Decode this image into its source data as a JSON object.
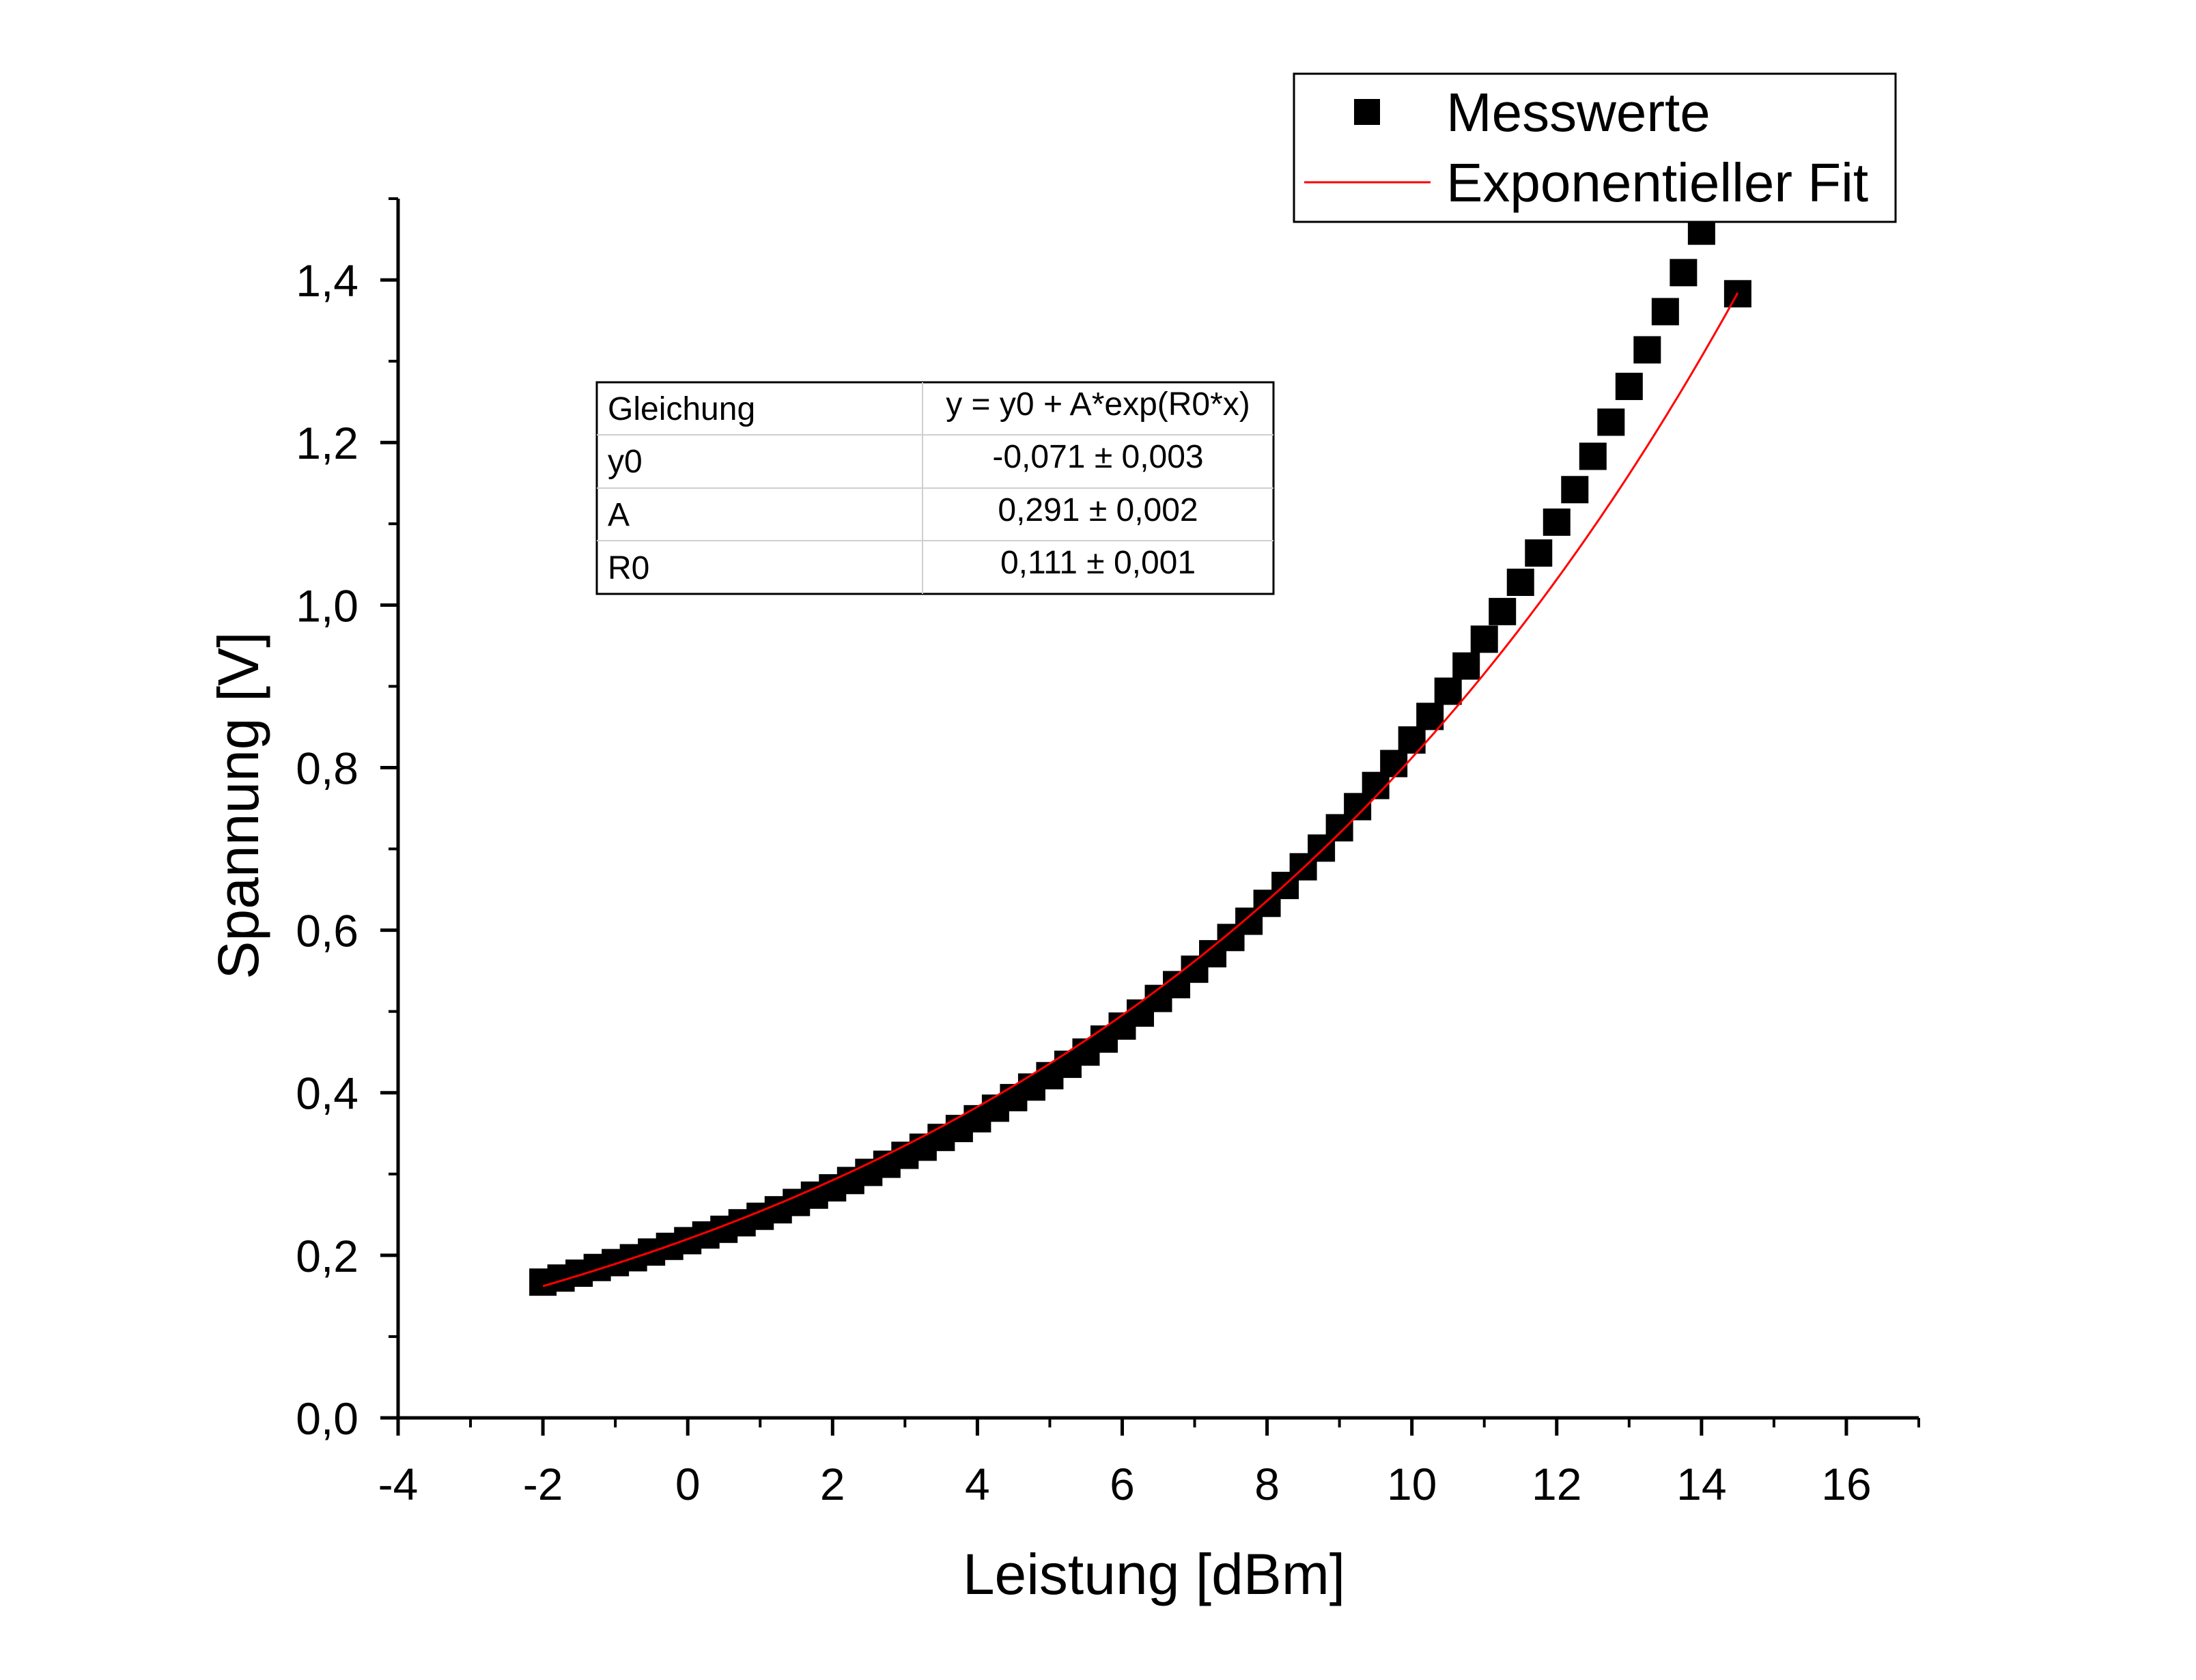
{
  "chart_data": {
    "type": "scatter",
    "xlabel": "Leistung [dBm]",
    "ylabel": "Spannung [V]",
    "xlim": [
      -4,
      17
    ],
    "ylim": [
      0,
      1.5
    ],
    "x_ticks": [
      -4,
      -2,
      0,
      2,
      4,
      6,
      8,
      10,
      12,
      14,
      16
    ],
    "x_tick_labels": [
      "-4",
      "-2",
      "0",
      "2",
      "4",
      "6",
      "8",
      "10",
      "12",
      "14",
      "16"
    ],
    "y_ticks": [
      0,
      0.2,
      0.4,
      0.6,
      0.8,
      1.0,
      1.2,
      1.4
    ],
    "y_tick_labels": [
      "0,0",
      "0,2",
      "0,4",
      "0,6",
      "0,8",
      "1,0",
      "1,2",
      "1,4"
    ],
    "grid": false,
    "legend_position": "top-right",
    "series": [
      {
        "name": "Messwerte",
        "kind": "scatter",
        "marker": "square",
        "color": "#000000",
        "x": [
          -2.0,
          -1.75,
          -1.5,
          -1.25,
          -1.0,
          -0.75,
          -0.5,
          -0.25,
          0.0,
          0.25,
          0.5,
          0.75,
          1.0,
          1.25,
          1.5,
          1.75,
          2.0,
          2.25,
          2.5,
          2.75,
          3.0,
          3.25,
          3.5,
          3.75,
          4.0,
          4.25,
          4.5,
          4.75,
          5.0,
          5.25,
          5.5,
          5.75,
          6.0,
          6.25,
          6.5,
          6.75,
          7.0,
          7.25,
          7.5,
          7.75,
          8.0,
          8.25,
          8.5,
          8.75,
          9.0,
          9.25,
          9.5,
          9.75,
          10.0,
          10.25,
          10.5,
          10.75,
          11.0,
          11.25,
          11.5,
          11.75,
          12.0,
          12.25,
          12.5,
          12.75,
          13.0,
          13.25,
          13.5,
          13.75,
          14.0,
          14.25,
          14.5
        ],
        "y": [
          0.167,
          0.172,
          0.178,
          0.185,
          0.191,
          0.197,
          0.204,
          0.211,
          0.218,
          0.225,
          0.232,
          0.24,
          0.248,
          0.256,
          0.265,
          0.274,
          0.283,
          0.292,
          0.302,
          0.312,
          0.323,
          0.333,
          0.345,
          0.356,
          0.368,
          0.381,
          0.394,
          0.407,
          0.421,
          0.435,
          0.45,
          0.466,
          0.482,
          0.498,
          0.516,
          0.533,
          0.552,
          0.571,
          0.591,
          0.611,
          0.633,
          0.655,
          0.678,
          0.701,
          0.726,
          0.752,
          0.778,
          0.805,
          0.834,
          0.863,
          0.894,
          0.925,
          0.958,
          0.992,
          1.028,
          1.064,
          1.102,
          1.142,
          1.183,
          1.225,
          1.269,
          1.314,
          1.361,
          1.409,
          1.46,
          1.512,
          1.383
        ]
      },
      {
        "name": "Exponentieller Fit",
        "kind": "line",
        "color": "#ff0000",
        "x_range": [
          -2.0,
          14.5
        ]
      }
    ],
    "fit_table": {
      "rows": [
        [
          "Gleichung",
          "y = y0 + A*exp(R0*x)"
        ],
        [
          "y0",
          "-0,071 ± 0,003"
        ],
        [
          "A",
          "0,291 ± 0,002"
        ],
        [
          "R0",
          "0,111 ± 0,001"
        ]
      ],
      "y0": -0.071,
      "A": 0.291,
      "R0": 0.111
    }
  }
}
